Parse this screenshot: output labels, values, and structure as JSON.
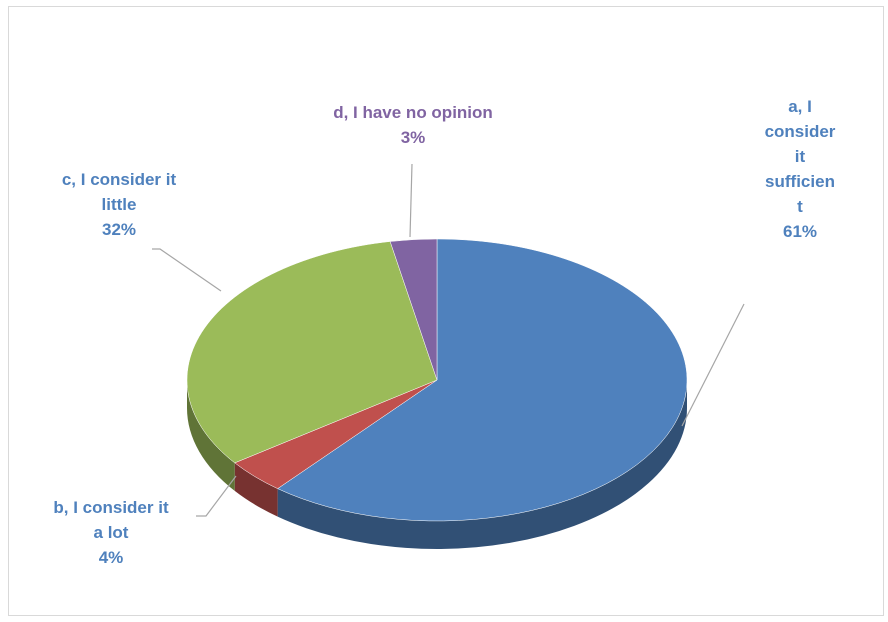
{
  "chart_data": {
    "type": "pie",
    "style": "3d",
    "start_angle_deg": 0,
    "direction": "clockwise",
    "slices": [
      {
        "name": "a, I consider it sufficient",
        "value": 61,
        "color": "#4F81BD",
        "label_lines": [
          "a, I",
          "consider",
          "it",
          "sufficien",
          "t"
        ],
        "pct_label": "61%",
        "label_color": "#4F81BD"
      },
      {
        "name": "b, I consider it a lot",
        "value": 4,
        "color": "#C0504D",
        "label_lines": [
          "b, I consider it",
          "a lot"
        ],
        "pct_label": "4%",
        "label_color": "#4F81BD"
      },
      {
        "name": "c, I consider it little",
        "value": 32,
        "color": "#9BBB59",
        "label_lines": [
          "c, I consider it",
          "little"
        ],
        "pct_label": "32%",
        "label_color": "#4F81BD"
      },
      {
        "name": "d, I have no opinion",
        "value": 3,
        "color": "#8064A2",
        "label_lines": [
          "d, I have no opinion"
        ],
        "pct_label": "3%",
        "label_color": "#8064A2"
      }
    ],
    "title": "",
    "legend": "none"
  }
}
